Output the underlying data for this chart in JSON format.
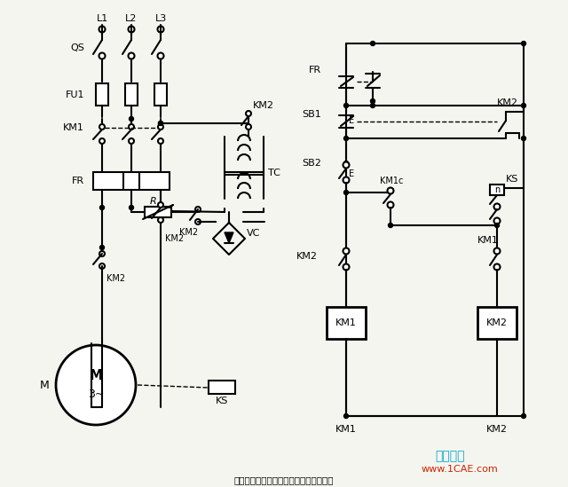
{
  "title": "以速度原则控制的单向能耗制动控制线路",
  "watermark": "仿真在线",
  "watermark2": "www.1CAE.com",
  "bg_color": "#f5f5f0",
  "line_color": "#000000",
  "watermark_color": "#00aacc",
  "figsize": [
    6.4,
    5.49
  ],
  "dpi": 100
}
